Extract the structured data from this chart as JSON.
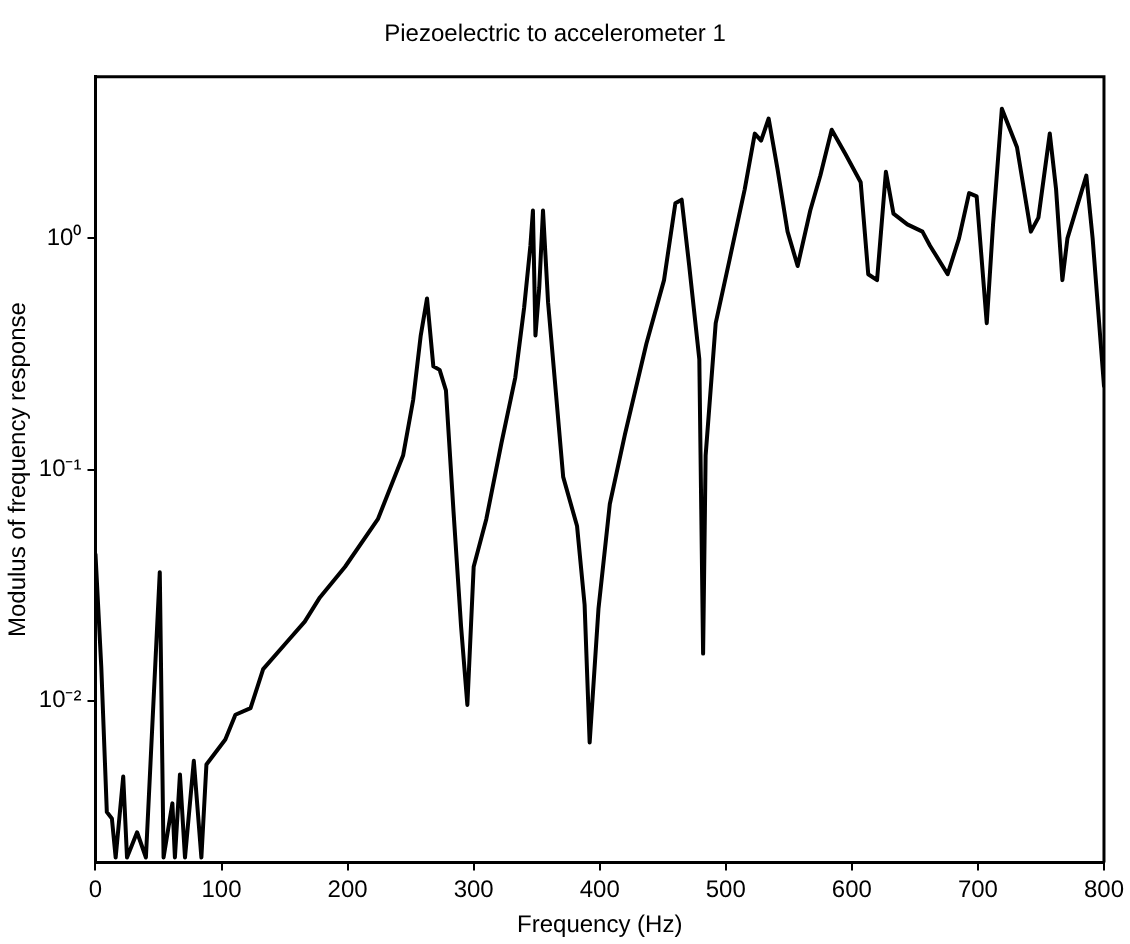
{
  "chart_data": {
    "type": "line",
    "title": "Piezoelectric to accelerometer 1",
    "xlabel": "Frequency (Hz)",
    "ylabel": "Modulus of frequency response",
    "log": "y",
    "grid": false,
    "legend": false,
    "marker": "none",
    "line_style": "solid",
    "xlim": [
      0,
      800
    ],
    "xticks": [
      0,
      100,
      200,
      300,
      400,
      500,
      600,
      700,
      800
    ],
    "ylim": [
      0.002,
      5
    ],
    "yticks": [
      {
        "value": 0.01,
        "label": "10⁻²"
      },
      {
        "value": 0.1,
        "label": "10⁻¹"
      },
      {
        "value": 1,
        "label": "10⁰"
      }
    ],
    "series": [
      {
        "color": "#000000",
        "x": [
          0,
          4.6,
          9,
          13,
          16,
          22,
          25,
          33,
          40,
          51,
          54,
          61,
          63,
          67,
          71,
          78,
          84,
          88,
          103,
          111,
          123,
          133,
          152,
          166,
          178,
          198,
          224,
          244,
          252,
          258,
          263,
          268,
          273,
          278,
          284,
          290,
          295,
          300,
          310,
          322,
          333,
          340,
          345,
          347,
          349,
          352,
          355,
          359,
          371,
          382,
          388,
          392,
          399,
          408,
          420,
          437,
          451,
          460,
          465,
          471,
          479,
          482,
          484,
          492,
          503,
          515,
          523,
          528,
          534,
          541,
          549,
          557,
          567,
          575,
          584,
          595,
          607,
          613,
          620,
          627,
          633,
          644,
          656,
          662,
          676,
          685,
          693,
          699,
          707,
          712,
          719,
          731,
          742,
          748,
          757,
          762,
          767,
          771,
          786,
          791,
          800
        ],
        "values": [
          0.043,
          0.014,
          0.0033,
          0.0031,
          0.0021,
          0.0047,
          0.0021,
          0.0027,
          0.0021,
          0.036,
          0.0021,
          0.0036,
          0.0021,
          0.0048,
          0.0021,
          0.0055,
          0.0021,
          0.0053,
          0.0068,
          0.0087,
          0.0093,
          0.0137,
          0.018,
          0.022,
          0.028,
          0.038,
          0.061,
          0.115,
          0.2,
          0.38,
          0.55,
          0.28,
          0.27,
          0.22,
          0.066,
          0.021,
          0.0096,
          0.038,
          0.061,
          0.13,
          0.25,
          0.5,
          0.93,
          1.32,
          0.38,
          0.61,
          1.32,
          0.53,
          0.093,
          0.057,
          0.026,
          0.0066,
          0.025,
          0.071,
          0.142,
          0.35,
          0.66,
          1.42,
          1.47,
          0.76,
          0.3,
          0.016,
          0.115,
          0.43,
          0.81,
          1.63,
          2.84,
          2.65,
          3.3,
          2.0,
          1.07,
          0.76,
          1.32,
          1.87,
          2.95,
          2.31,
          1.75,
          0.7,
          0.66,
          1.94,
          1.28,
          1.15,
          1.07,
          0.93,
          0.7,
          1.0,
          1.57,
          1.52,
          0.43,
          1.15,
          3.64,
          2.48,
          1.07,
          1.23,
          2.84,
          1.63,
          0.66,
          1.0,
          1.87,
          1.0,
          0.23
        ]
      }
    ]
  }
}
